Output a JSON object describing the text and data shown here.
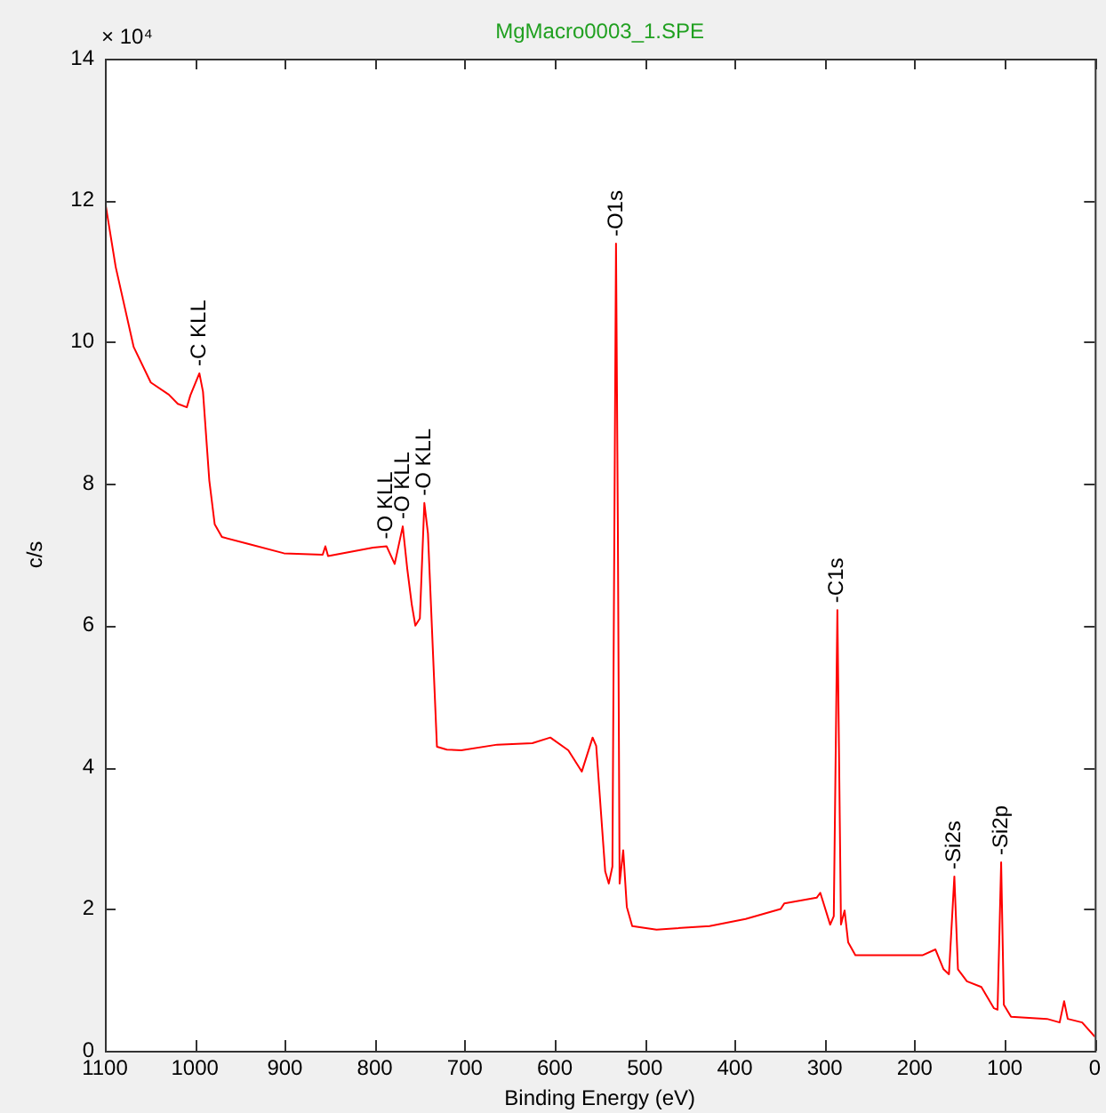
{
  "chart_data": {
    "type": "line",
    "title": "MgMacro0003_1.SPE",
    "xlabel": "Binding Energy (eV)",
    "ylabel": "c/s",
    "xlim": [
      1100,
      0
    ],
    "xticks": [
      1100,
      1000,
      900,
      800,
      700,
      600,
      500,
      400,
      300,
      200,
      100,
      0
    ],
    "ylim": [
      0,
      14
    ],
    "yticks": [
      0,
      2,
      4,
      6,
      8,
      10,
      12,
      14
    ],
    "grid": false,
    "legend": false,
    "marker": "none",
    "line_style": "solid",
    "series": [
      {
        "color": "#ff0000",
        "x": [
          1100,
          1088,
          1068,
          1049,
          1029,
          1019,
          1009,
          1005,
          995,
          991,
          984,
          978,
          970,
          940,
          901,
          858,
          855,
          852,
          802,
          787,
          778,
          769,
          764,
          759,
          755,
          750,
          745,
          741,
          731,
          720,
          704,
          664,
          625,
          605,
          585,
          570,
          558,
          554,
          544,
          540,
          536,
          532,
          530,
          528,
          524,
          520,
          514,
          487,
          428,
          388,
          349,
          345,
          309,
          305,
          294,
          290,
          286,
          282,
          278,
          274,
          266,
          250,
          191,
          177,
          168,
          162,
          156,
          152,
          142,
          126,
          112,
          108,
          104,
          101,
          93,
          53,
          39,
          34,
          30,
          14,
          0
        ],
        "values": [
          12.0,
          11.06,
          9.93,
          9.43,
          9.26,
          9.13,
          9.08,
          9.25,
          9.56,
          9.3,
          8.05,
          7.43,
          7.25,
          7.15,
          7.02,
          7.0,
          7.12,
          6.98,
          7.1,
          7.12,
          6.87,
          7.4,
          6.8,
          6.3,
          6.0,
          6.1,
          7.73,
          7.3,
          4.29,
          4.25,
          4.24,
          4.32,
          4.34,
          4.42,
          4.24,
          3.94,
          4.42,
          4.3,
          2.53,
          2.36,
          2.6,
          11.39,
          7.5,
          2.36,
          2.83,
          2.03,
          1.76,
          1.71,
          1.76,
          1.86,
          2.0,
          2.08,
          2.16,
          2.23,
          1.78,
          1.9,
          6.22,
          1.78,
          1.98,
          1.53,
          1.35,
          1.35,
          1.35,
          1.43,
          1.15,
          1.08,
          2.46,
          1.15,
          0.98,
          0.9,
          0.6,
          0.58,
          2.66,
          0.65,
          0.48,
          0.45,
          0.4,
          0.7,
          0.45,
          0.4,
          0.2
        ]
      }
    ],
    "annotations": [
      "× 10⁴",
      {
        "text": "-C KLL",
        "x": 995,
        "y": 9.56
      },
      {
        "text": "-O KLL",
        "x": 787,
        "y": 7.12
      },
      {
        "text": "-O KLL",
        "x": 769,
        "y": 7.4
      },
      {
        "text": "-O KLL",
        "x": 745,
        "y": 7.73
      },
      {
        "text": "-O1s",
        "x": 532,
        "y": 11.39
      },
      {
        "text": "-C1s",
        "x": 286,
        "y": 6.22
      },
      {
        "text": "-Si2s",
        "x": 156,
        "y": 2.46
      },
      {
        "text": "-Si2p",
        "x": 104,
        "y": 2.66
      }
    ]
  }
}
